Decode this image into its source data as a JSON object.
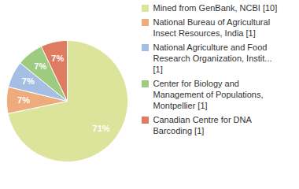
{
  "chart_data": {
    "type": "pie",
    "categories": [
      "Mined from GenBank, NCBI [10]",
      "National Bureau of Agricultural Insect Resources, India [1]",
      "National Agriculture and Food Research Organization, Instit... [1]",
      "Center for Biology and Management of Populations, Montpellier [1]",
      "Canadian Centre for DNA Barcoding [1]"
    ],
    "values": [
      71,
      7,
      7,
      7,
      7
    ],
    "value_labels": [
      "71%",
      "7%",
      "7%",
      "7%",
      "7%"
    ],
    "colors": [
      "#dce39b",
      "#eeab7c",
      "#a5bfe4",
      "#9dcb80",
      "#df7b61"
    ],
    "data_labels": true,
    "legend": "right"
  }
}
